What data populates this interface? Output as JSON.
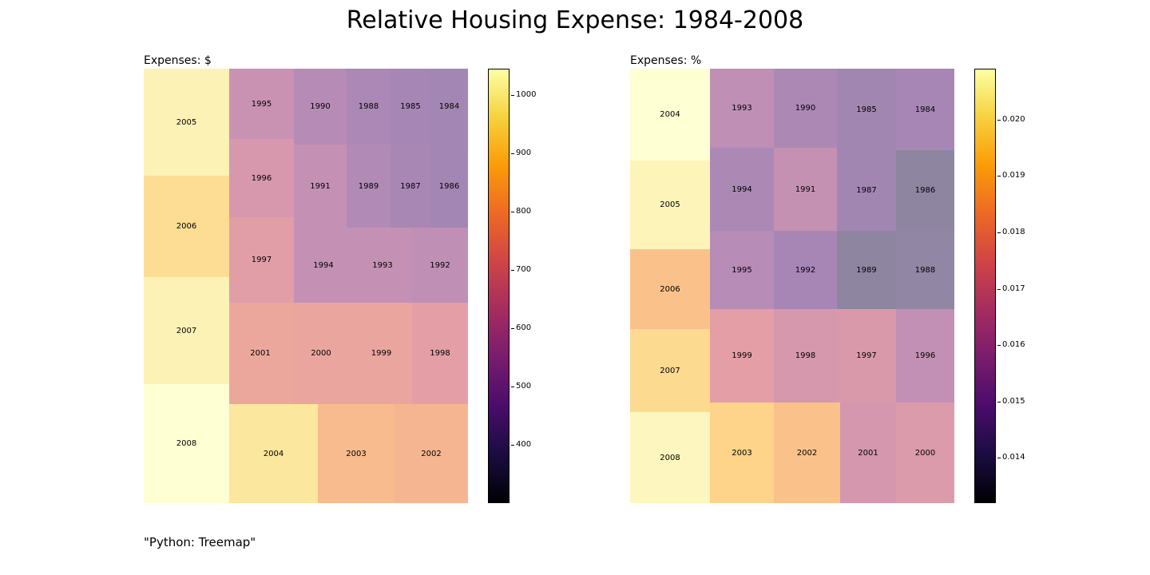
{
  "title": "Relative Housing Expense: 1984-2008",
  "caption": "\"Python: Treemap\"",
  "chart_data": [
    {
      "type": "treemap",
      "subtitle": "Expenses: $",
      "colormap": "inferno",
      "colorbar": {
        "min": 300,
        "max": 1045,
        "ticks": [
          "400",
          "500",
          "600",
          "700",
          "800",
          "900",
          "1000"
        ]
      },
      "tiles": [
        {
          "label": "2005",
          "value": 1000
        },
        {
          "label": "2006",
          "value": 930
        },
        {
          "label": "2007",
          "value": 1000
        },
        {
          "label": "2008",
          "value": 1045
        },
        {
          "label": "1995",
          "value": 600
        },
        {
          "label": "1990",
          "value": 530
        },
        {
          "label": "1988",
          "value": 490
        },
        {
          "label": "1985",
          "value": 470
        },
        {
          "label": "1984",
          "value": 460
        },
        {
          "label": "1996",
          "value": 650
        },
        {
          "label": "1991",
          "value": 580
        },
        {
          "label": "1989",
          "value": 510
        },
        {
          "label": "1987",
          "value": 480
        },
        {
          "label": "1986",
          "value": 465
        },
        {
          "label": "1997",
          "value": 690
        },
        {
          "label": "1994",
          "value": 580
        },
        {
          "label": "1993",
          "value": 580
        },
        {
          "label": "1992",
          "value": 560
        },
        {
          "label": "2001",
          "value": 740
        },
        {
          "label": "2000",
          "value": 730
        },
        {
          "label": "1999",
          "value": 730
        },
        {
          "label": "1998",
          "value": 700
        },
        {
          "label": "2004",
          "value": 960
        },
        {
          "label": "2003",
          "value": 820
        },
        {
          "label": "2002",
          "value": 800
        }
      ]
    },
    {
      "type": "treemap",
      "subtitle": "Expenses: %",
      "colormap": "inferno",
      "colorbar": {
        "min": 0.0132,
        "max": 0.0209,
        "ticks": [
          "0.014",
          "0.015",
          "0.016",
          "0.017",
          "0.018",
          "0.019",
          "0.020"
        ]
      },
      "tiles": [
        {
          "label": "2004",
          "value": 0.0209
        },
        {
          "label": "2005",
          "value": 0.0205
        },
        {
          "label": "2006",
          "value": 0.0188
        },
        {
          "label": "2007",
          "value": 0.0196
        },
        {
          "label": "2008",
          "value": 0.0206
        },
        {
          "label": "1993",
          "value": 0.0159
        },
        {
          "label": "1990",
          "value": 0.0152
        },
        {
          "label": "1985",
          "value": 0.0148
        },
        {
          "label": "1984",
          "value": 0.015
        },
        {
          "label": "1994",
          "value": 0.0152
        },
        {
          "label": "1991",
          "value": 0.0161
        },
        {
          "label": "1987",
          "value": 0.0148
        },
        {
          "label": "1986",
          "value": 0.0141
        },
        {
          "label": "1995",
          "value": 0.0156
        },
        {
          "label": "1992",
          "value": 0.015
        },
        {
          "label": "1989",
          "value": 0.0141
        },
        {
          "label": "1988",
          "value": 0.0142
        },
        {
          "label": "1999",
          "value": 0.0173
        },
        {
          "label": "1998",
          "value": 0.0168
        },
        {
          "label": "1997",
          "value": 0.0169
        },
        {
          "label": "1996",
          "value": 0.016
        },
        {
          "label": "2003",
          "value": 0.0194
        },
        {
          "label": "2002",
          "value": 0.0188
        },
        {
          "label": "2001",
          "value": 0.0167
        },
        {
          "label": "2000",
          "value": 0.017
        }
      ]
    }
  ]
}
